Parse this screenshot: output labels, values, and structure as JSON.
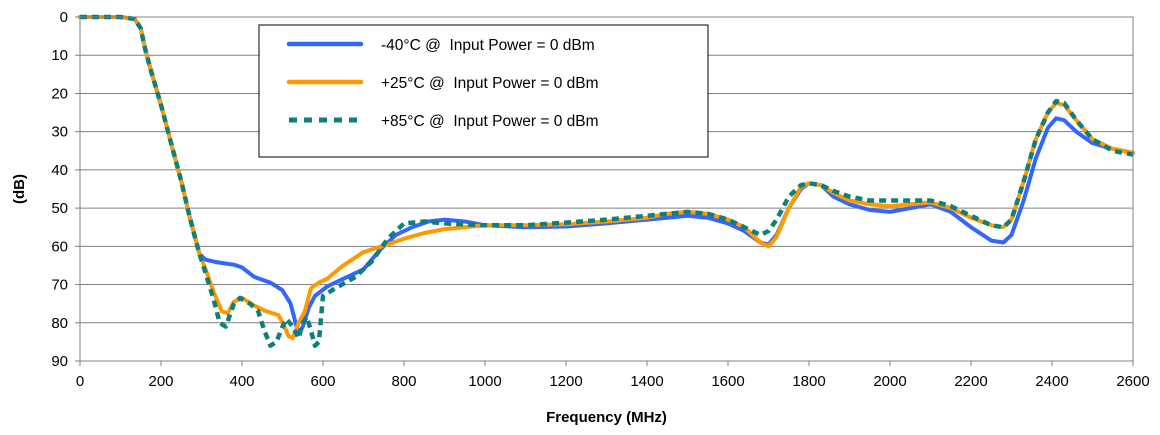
{
  "chart_data": {
    "type": "line",
    "title": "",
    "xlabel": "Frequency (MHz)",
    "ylabel": "(dB)",
    "xlim": [
      0,
      2600
    ],
    "ylim": [
      0,
      90
    ],
    "y_inverted": true,
    "x_ticks": [
      "0",
      "200",
      "400",
      "600",
      "800",
      "1000",
      "1200",
      "1400",
      "1600",
      "1800",
      "2000",
      "2200",
      "2400",
      "2600"
    ],
    "y_ticks": [
      "0",
      "10",
      "20",
      "30",
      "40",
      "50",
      "60",
      "70",
      "80",
      "90"
    ],
    "grid": "horizontal",
    "legend_position": "top-center",
    "series": [
      {
        "name": "-40°C @  Input Power = 0 dBm",
        "color": "#3366FF",
        "style": "solid",
        "points": [
          [
            0,
            0
          ],
          [
            100,
            0
          ],
          [
            135,
            0.5
          ],
          [
            150,
            3
          ],
          [
            160,
            8
          ],
          [
            175,
            14
          ],
          [
            200,
            23
          ],
          [
            225,
            33
          ],
          [
            250,
            43
          ],
          [
            270,
            52
          ],
          [
            285,
            58
          ],
          [
            295,
            62
          ],
          [
            310,
            63.5
          ],
          [
            340,
            64.2
          ],
          [
            380,
            64.8
          ],
          [
            400,
            65.5
          ],
          [
            430,
            68
          ],
          [
            470,
            69.5
          ],
          [
            500,
            71.5
          ],
          [
            520,
            75
          ],
          [
            530,
            79
          ],
          [
            540,
            83
          ],
          [
            550,
            81
          ],
          [
            565,
            76
          ],
          [
            580,
            73
          ],
          [
            610,
            70.5
          ],
          [
            650,
            68.5
          ],
          [
            700,
            66
          ],
          [
            740,
            61
          ],
          [
            780,
            57
          ],
          [
            820,
            55
          ],
          [
            860,
            53.5
          ],
          [
            900,
            53
          ],
          [
            950,
            53.5
          ],
          [
            1000,
            54.5
          ],
          [
            1100,
            55
          ],
          [
            1200,
            54.8
          ],
          [
            1300,
            54
          ],
          [
            1400,
            53
          ],
          [
            1450,
            52.5
          ],
          [
            1500,
            52
          ],
          [
            1550,
            52.5
          ],
          [
            1600,
            54
          ],
          [
            1640,
            56
          ],
          [
            1680,
            59
          ],
          [
            1700,
            59.5
          ],
          [
            1720,
            57
          ],
          [
            1750,
            50
          ],
          [
            1780,
            45
          ],
          [
            1800,
            43.5
          ],
          [
            1830,
            44
          ],
          [
            1860,
            47
          ],
          [
            1900,
            49
          ],
          [
            1950,
            50.5
          ],
          [
            2000,
            51
          ],
          [
            2050,
            50
          ],
          [
            2100,
            49
          ],
          [
            2150,
            51
          ],
          [
            2200,
            55
          ],
          [
            2250,
            58.5
          ],
          [
            2280,
            59
          ],
          [
            2300,
            57
          ],
          [
            2330,
            48
          ],
          [
            2360,
            37
          ],
          [
            2390,
            29
          ],
          [
            2410,
            26.5
          ],
          [
            2430,
            27
          ],
          [
            2460,
            30
          ],
          [
            2500,
            33
          ],
          [
            2550,
            34.5
          ],
          [
            2600,
            35.5
          ]
        ]
      },
      {
        "name": "+25°C @  Input Power = 0 dBm",
        "color": "#FF9900",
        "style": "solid",
        "points": [
          [
            0,
            0
          ],
          [
            100,
            0
          ],
          [
            135,
            0.5
          ],
          [
            150,
            3
          ],
          [
            160,
            8
          ],
          [
            175,
            14
          ],
          [
            200,
            23
          ],
          [
            225,
            33
          ],
          [
            250,
            43
          ],
          [
            270,
            52
          ],
          [
            285,
            58
          ],
          [
            295,
            62
          ],
          [
            310,
            66
          ],
          [
            330,
            72
          ],
          [
            350,
            77
          ],
          [
            365,
            77.5
          ],
          [
            380,
            74.5
          ],
          [
            400,
            73.5
          ],
          [
            430,
            75.5
          ],
          [
            460,
            77
          ],
          [
            490,
            78
          ],
          [
            505,
            81
          ],
          [
            515,
            83.5
          ],
          [
            525,
            84
          ],
          [
            540,
            80
          ],
          [
            555,
            77
          ],
          [
            570,
            71
          ],
          [
            590,
            69.5
          ],
          [
            610,
            68.5
          ],
          [
            650,
            65
          ],
          [
            700,
            61.5
          ],
          [
            760,
            59.5
          ],
          [
            800,
            58
          ],
          [
            850,
            56.5
          ],
          [
            900,
            55.5
          ],
          [
            1000,
            54.5
          ],
          [
            1100,
            54.5
          ],
          [
            1200,
            54.2
          ],
          [
            1300,
            53.5
          ],
          [
            1400,
            52.5
          ],
          [
            1450,
            51.5
          ],
          [
            1500,
            51
          ],
          [
            1550,
            51.5
          ],
          [
            1600,
            53
          ],
          [
            1640,
            55
          ],
          [
            1680,
            59
          ],
          [
            1700,
            60
          ],
          [
            1720,
            57.5
          ],
          [
            1750,
            50
          ],
          [
            1780,
            44.5
          ],
          [
            1800,
            43.5
          ],
          [
            1830,
            44
          ],
          [
            1860,
            46
          ],
          [
            1900,
            48
          ],
          [
            1950,
            49
          ],
          [
            2000,
            49.5
          ],
          [
            2050,
            49
          ],
          [
            2100,
            48.5
          ],
          [
            2150,
            50
          ],
          [
            2200,
            52.5
          ],
          [
            2250,
            54.5
          ],
          [
            2280,
            55
          ],
          [
            2300,
            53
          ],
          [
            2330,
            43
          ],
          [
            2360,
            32
          ],
          [
            2390,
            25
          ],
          [
            2410,
            22.5
          ],
          [
            2430,
            23
          ],
          [
            2460,
            27
          ],
          [
            2500,
            32
          ],
          [
            2550,
            34.5
          ],
          [
            2600,
            35.5
          ]
        ]
      },
      {
        "name": "+85°C @  Input Power = 0 dBm",
        "color": "#0E7F7A",
        "style": "dashed",
        "points": [
          [
            0,
            0
          ],
          [
            100,
            0
          ],
          [
            135,
            0.5
          ],
          [
            150,
            3
          ],
          [
            160,
            8
          ],
          [
            175,
            14
          ],
          [
            200,
            23
          ],
          [
            225,
            33
          ],
          [
            250,
            43
          ],
          [
            270,
            52
          ],
          [
            285,
            58
          ],
          [
            295,
            62
          ],
          [
            310,
            67
          ],
          [
            330,
            74
          ],
          [
            345,
            80
          ],
          [
            360,
            81
          ],
          [
            380,
            75
          ],
          [
            395,
            73.5
          ],
          [
            420,
            75
          ],
          [
            440,
            77
          ],
          [
            455,
            82
          ],
          [
            470,
            86
          ],
          [
            485,
            85
          ],
          [
            500,
            81
          ],
          [
            510,
            79
          ],
          [
            525,
            81
          ],
          [
            540,
            84
          ],
          [
            550,
            80
          ],
          [
            560,
            78.5
          ],
          [
            570,
            82
          ],
          [
            580,
            86
          ],
          [
            590,
            85
          ],
          [
            600,
            73
          ],
          [
            630,
            71
          ],
          [
            680,
            68
          ],
          [
            720,
            64
          ],
          [
            760,
            58
          ],
          [
            800,
            54
          ],
          [
            850,
            53.5
          ],
          [
            900,
            54
          ],
          [
            1000,
            54.5
          ],
          [
            1100,
            54.5
          ],
          [
            1200,
            53.8
          ],
          [
            1300,
            53
          ],
          [
            1400,
            52
          ],
          [
            1450,
            51.5
          ],
          [
            1500,
            51
          ],
          [
            1550,
            51.5
          ],
          [
            1600,
            53
          ],
          [
            1640,
            55
          ],
          [
            1680,
            57
          ],
          [
            1700,
            56
          ],
          [
            1720,
            53
          ],
          [
            1750,
            47
          ],
          [
            1780,
            44
          ],
          [
            1800,
            43.5
          ],
          [
            1830,
            44
          ],
          [
            1860,
            45.5
          ],
          [
            1900,
            47
          ],
          [
            1950,
            48
          ],
          [
            2000,
            48
          ],
          [
            2050,
            48
          ],
          [
            2100,
            48
          ],
          [
            2150,
            49.5
          ],
          [
            2200,
            52
          ],
          [
            2250,
            54.5
          ],
          [
            2280,
            55
          ],
          [
            2300,
            53
          ],
          [
            2330,
            43
          ],
          [
            2360,
            32
          ],
          [
            2390,
            25
          ],
          [
            2410,
            22
          ],
          [
            2430,
            22.5
          ],
          [
            2460,
            27
          ],
          [
            2500,
            32
          ],
          [
            2550,
            35
          ],
          [
            2600,
            36
          ]
        ]
      }
    ]
  }
}
